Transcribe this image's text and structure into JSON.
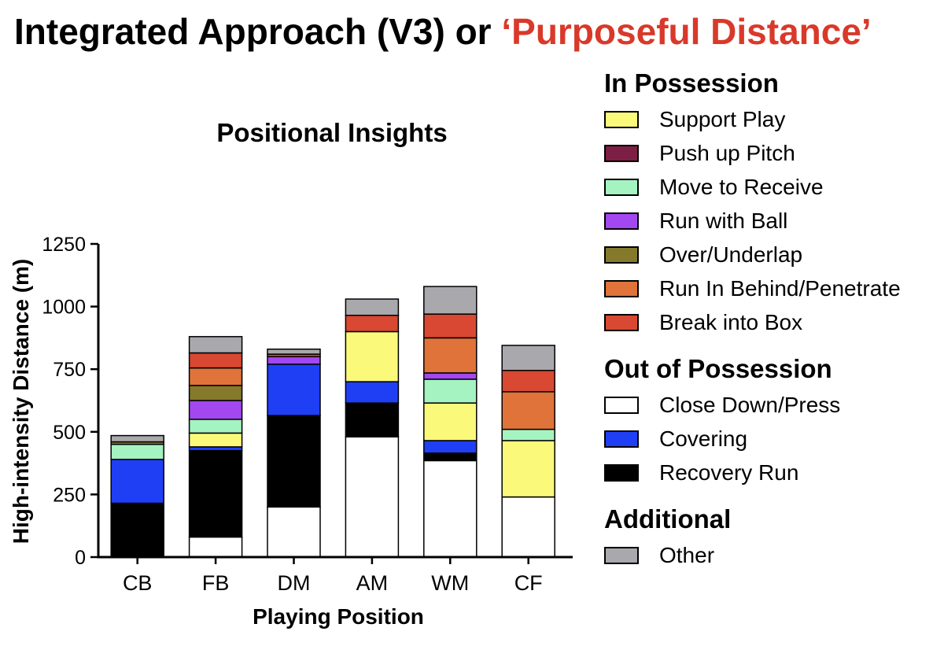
{
  "page": {
    "title_prefix": "Integrated Approach (V3) or ",
    "title_accent": "‘Purposeful Distance’"
  },
  "colors": {
    "accent": "#d9392a",
    "Close Down/Press": "#ffffff",
    "Recovery Run": "#000000",
    "Covering": "#1f3ff5",
    "Support Play": "#fbf97a",
    "Push up Pitch": "#7d1f45",
    "Move to Receive": "#a4f3c0",
    "Run with Ball": "#a347f0",
    "Over/Underlap": "#857a2b",
    "Run In Behind/Penetrate": "#e0733a",
    "Break into Box": "#d84832",
    "Other": "#a8a8ad"
  },
  "legend": {
    "groups": [
      {
        "title": "In Possession",
        "items": [
          "Support Play",
          "Push up Pitch",
          "Move to Receive",
          "Run with Ball",
          "Over/Underlap",
          "Run In Behind/Penetrate",
          "Break into Box"
        ]
      },
      {
        "title": "Out of Possession",
        "items": [
          "Close Down/Press",
          "Covering",
          "Recovery Run"
        ]
      },
      {
        "title": "Additional",
        "items": [
          "Other"
        ]
      }
    ]
  },
  "chart_data": {
    "type": "bar",
    "stacked": true,
    "title": "Positional Insights",
    "xlabel": "Playing Position",
    "ylabel": "High-intensity Distance (m)",
    "ylim": [
      0,
      1250
    ],
    "yticks": [
      0,
      250,
      500,
      750,
      1000,
      1250
    ],
    "categories": [
      "CB",
      "FB",
      "DM",
      "AM",
      "WM",
      "CF"
    ],
    "stack_order": [
      "Close Down/Press",
      "Recovery Run",
      "Covering",
      "Support Play",
      "Push up Pitch",
      "Move to Receive",
      "Run with Ball",
      "Over/Underlap",
      "Run In Behind/Penetrate",
      "Break into Box",
      "Other"
    ],
    "series": [
      {
        "name": "Close Down/Press",
        "values": [
          0,
          80,
          200,
          480,
          385,
          240
        ]
      },
      {
        "name": "Recovery Run",
        "values": [
          215,
          345,
          365,
          135,
          30,
          0
        ]
      },
      {
        "name": "Covering",
        "values": [
          175,
          15,
          205,
          85,
          50,
          0
        ]
      },
      {
        "name": "Support Play",
        "values": [
          0,
          55,
          0,
          200,
          150,
          225
        ]
      },
      {
        "name": "Push up Pitch",
        "values": [
          0,
          0,
          0,
          0,
          0,
          0
        ]
      },
      {
        "name": "Move to Receive",
        "values": [
          60,
          55,
          0,
          0,
          95,
          45
        ]
      },
      {
        "name": "Run with Ball",
        "values": [
          0,
          75,
          30,
          0,
          25,
          0
        ]
      },
      {
        "name": "Over/Underlap",
        "values": [
          10,
          60,
          0,
          0,
          0,
          0
        ]
      },
      {
        "name": "Run In Behind/Penetrate",
        "values": [
          0,
          70,
          0,
          0,
          140,
          150
        ]
      },
      {
        "name": "Break into Box",
        "values": [
          0,
          60,
          10,
          65,
          95,
          85
        ]
      },
      {
        "name": "Other",
        "values": [
          25,
          65,
          20,
          65,
          110,
          100
        ]
      }
    ]
  }
}
